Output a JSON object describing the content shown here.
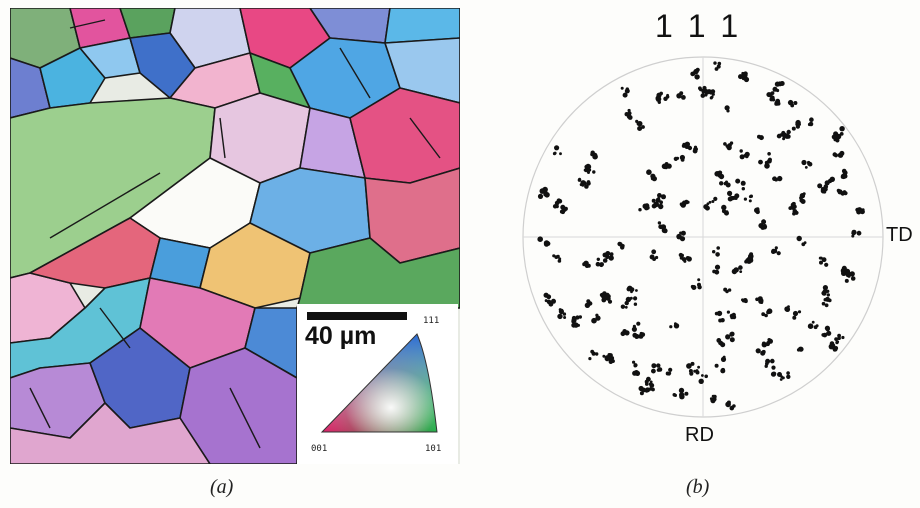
{
  "figure": {
    "panel_a": {
      "caption": "(a)",
      "scale_bar": {
        "label": "40 µm"
      },
      "ipf_legend": {
        "top": "111",
        "bottom_left": "001",
        "bottom_right": "101"
      }
    },
    "panel_b": {
      "caption": "(b)",
      "pole_figure": {
        "title": "1 1 1",
        "x_axis_label": "TD",
        "y_axis_label": "RD"
      }
    }
  }
}
